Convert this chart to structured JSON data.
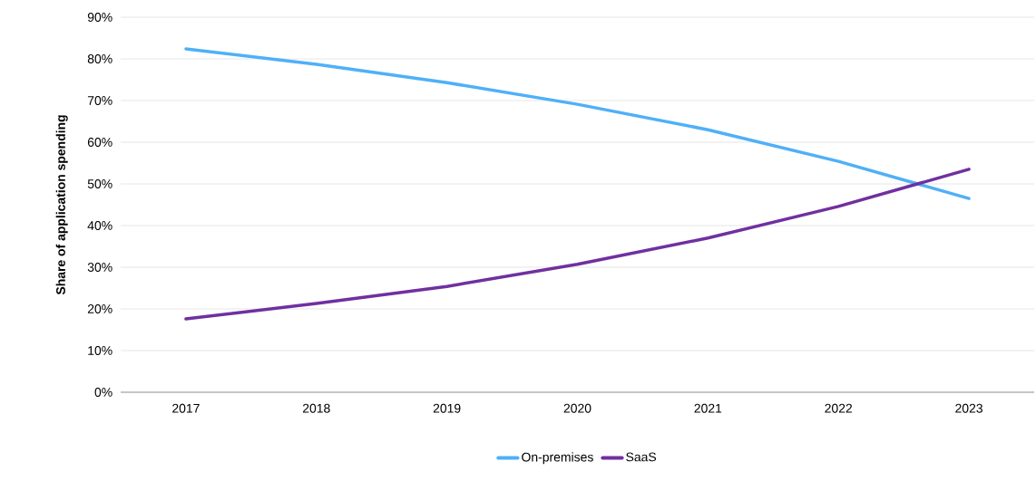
{
  "chart_data": {
    "type": "line",
    "ylabel": "Share of application spending",
    "categories": [
      "2017",
      "2018",
      "2019",
      "2020",
      "2021",
      "2022",
      "2023"
    ],
    "series": [
      {
        "name": "On-premises",
        "color": "#4fb0f7",
        "values": [
          82.4,
          78.7,
          74.3,
          69.1,
          63.0,
          55.4,
          46.5
        ]
      },
      {
        "name": "SaaS",
        "color": "#7030a0",
        "values": [
          17.6,
          21.3,
          25.4,
          30.7,
          37.0,
          44.6,
          53.5
        ]
      }
    ],
    "ylim": [
      0,
      90
    ],
    "yticks": [
      {
        "value": 0,
        "label": "0%"
      },
      {
        "value": 10,
        "label": "10%"
      },
      {
        "value": 20,
        "label": "20%"
      },
      {
        "value": 30,
        "label": "30%"
      },
      {
        "value": 40,
        "label": "40%"
      },
      {
        "value": 50,
        "label": "50%"
      },
      {
        "value": 60,
        "label": "60%"
      },
      {
        "value": 70,
        "label": "70%"
      },
      {
        "value": 80,
        "label": "80%"
      },
      {
        "value": 90,
        "label": "90%"
      }
    ],
    "grid": "y",
    "legend": "bottom",
    "marker": "none",
    "line_style": "solid"
  }
}
